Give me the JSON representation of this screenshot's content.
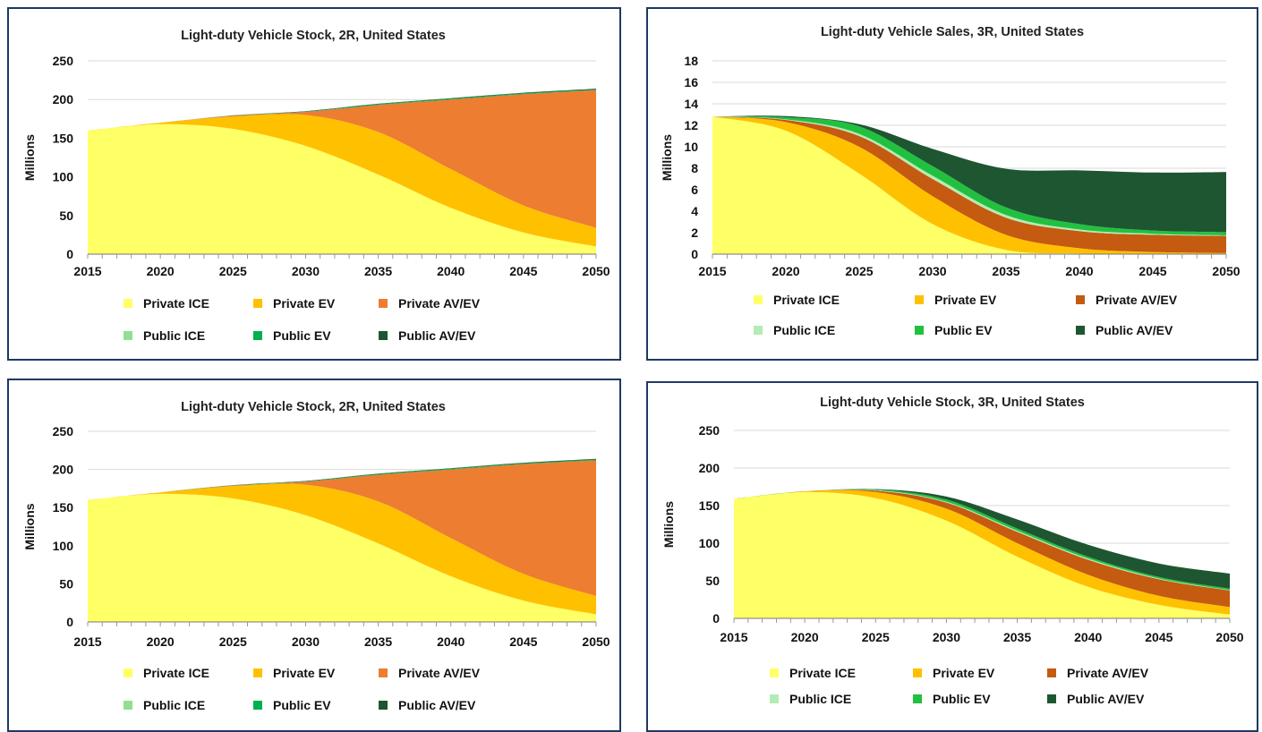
{
  "chart_data": [
    {
      "type": "area",
      "stacked": true,
      "title": "Light-duty Vehicle Stock, 2R, United States",
      "ylabel": "Millions",
      "xlabel": "",
      "x": [
        2015,
        2020,
        2025,
        2030,
        2035,
        2040,
        2045,
        2050
      ],
      "ylim": [
        0,
        250
      ],
      "yticks": [
        0,
        50,
        100,
        150,
        200,
        250
      ],
      "xticks": [
        2015,
        2020,
        2025,
        2030,
        2035,
        2040,
        2045,
        2050
      ],
      "grid": true,
      "legend_position": "bottom",
      "series": [
        {
          "name": "Private ICE",
          "color": "#ffff66",
          "values": [
            160,
            168,
            162,
            140,
            103,
            60,
            28,
            10
          ]
        },
        {
          "name": "Private EV",
          "color": "#ffc000",
          "values": [
            0,
            2,
            16,
            40,
            55,
            50,
            35,
            24
          ]
        },
        {
          "name": "Private AV/EV",
          "color": "#ed7d31",
          "values": [
            0,
            0,
            1,
            4,
            35,
            90,
            144,
            178
          ]
        },
        {
          "name": "Public ICE",
          "color": "#90e090",
          "values": [
            0,
            0,
            0,
            0,
            0,
            0,
            0,
            0
          ]
        },
        {
          "name": "Public EV",
          "color": "#00b050",
          "values": [
            0,
            0,
            0.3,
            0.5,
            1,
            1,
            1,
            1
          ]
        },
        {
          "name": "Public AV/EV",
          "color": "#1e5631",
          "values": [
            0,
            0,
            0.2,
            0.5,
            0.6,
            0.7,
            0.8,
            1
          ]
        }
      ]
    },
    {
      "type": "area",
      "stacked": true,
      "title": "Light-duty Vehicle Sales, 3R, United States",
      "ylabel": "Millions",
      "xlabel": "",
      "x": [
        2015,
        2020,
        2025,
        2030,
        2035,
        2040,
        2045,
        2050
      ],
      "ylim": [
        0,
        18
      ],
      "yticks": [
        0,
        2,
        4,
        6,
        8,
        10,
        12,
        14,
        16,
        18
      ],
      "xticks": [
        2015,
        2020,
        2025,
        2030,
        2035,
        2040,
        2045,
        2050
      ],
      "grid": true,
      "legend_position": "bottom",
      "series": [
        {
          "name": "Private ICE",
          "color": "#ffff66",
          "values": [
            12.8,
            11.5,
            7.5,
            2.8,
            0.4,
            0.05,
            0,
            0
          ]
        },
        {
          "name": "Private EV",
          "color": "#ffc000",
          "values": [
            0,
            0.8,
            2.5,
            2.6,
            1.4,
            0.5,
            0.2,
            0.1
          ]
        },
        {
          "name": "Private AV/EV",
          "color": "#c55a11",
          "values": [
            0,
            0.2,
            1.0,
            1.6,
            1.6,
            1.6,
            1.6,
            1.6
          ]
        },
        {
          "name": "Public ICE",
          "color": "#b4ecb4",
          "values": [
            0,
            0.05,
            0.2,
            0.3,
            0.25,
            0.15,
            0.1,
            0.05
          ]
        },
        {
          "name": "Public EV",
          "color": "#22c040",
          "values": [
            0,
            0.2,
            0.7,
            0.9,
            0.7,
            0.5,
            0.3,
            0.3
          ]
        },
        {
          "name": "Public AV/EV",
          "color": "#1e5631",
          "values": [
            0,
            0.1,
            0.2,
            1.6,
            3.6,
            5.0,
            5.4,
            5.6
          ]
        }
      ]
    },
    {
      "type": "area",
      "stacked": true,
      "title": "Light-duty Vehicle Stock, 2R, United States",
      "ylabel": "Millions",
      "xlabel": "",
      "x": [
        2015,
        2020,
        2025,
        2030,
        2035,
        2040,
        2045,
        2050
      ],
      "ylim": [
        0,
        250
      ],
      "yticks": [
        0,
        50,
        100,
        150,
        200,
        250
      ],
      "xticks": [
        2015,
        2020,
        2025,
        2030,
        2035,
        2040,
        2045,
        2050
      ],
      "grid": true,
      "legend_position": "bottom",
      "series": [
        {
          "name": "Private ICE",
          "color": "#ffff66",
          "values": [
            160,
            168,
            162,
            140,
            103,
            60,
            28,
            10
          ]
        },
        {
          "name": "Private EV",
          "color": "#ffc000",
          "values": [
            0,
            2,
            16,
            40,
            55,
            50,
            35,
            24
          ]
        },
        {
          "name": "Private AV/EV",
          "color": "#ed7d31",
          "values": [
            0,
            0,
            1,
            4,
            35,
            90,
            144,
            178
          ]
        },
        {
          "name": "Public ICE",
          "color": "#90e090",
          "values": [
            0,
            0,
            0,
            0,
            0,
            0,
            0,
            0
          ]
        },
        {
          "name": "Public EV",
          "color": "#00b050",
          "values": [
            0,
            0,
            0.3,
            0.5,
            1,
            1,
            1,
            1
          ]
        },
        {
          "name": "Public AV/EV",
          "color": "#1e5631",
          "values": [
            0,
            0,
            0.2,
            0.5,
            0.6,
            0.7,
            0.8,
            1
          ]
        }
      ]
    },
    {
      "type": "area",
      "stacked": true,
      "title": "Light-duty Vehicle Stock, 3R, United States",
      "ylabel": "Millions",
      "xlabel": "",
      "x": [
        2015,
        2020,
        2025,
        2030,
        2035,
        2040,
        2045,
        2050
      ],
      "ylim": [
        0,
        250
      ],
      "yticks": [
        0,
        50,
        100,
        150,
        200,
        250
      ],
      "xticks": [
        2015,
        2020,
        2025,
        2030,
        2035,
        2040,
        2045,
        2050
      ],
      "grid": true,
      "legend_position": "bottom",
      "series": [
        {
          "name": "Private ICE",
          "color": "#ffff66",
          "values": [
            159,
            168,
            160,
            130,
            82,
            42,
            18,
            5
          ]
        },
        {
          "name": "Private EV",
          "color": "#ffc000",
          "values": [
            0,
            1,
            8,
            16,
            18,
            16,
            12,
            10
          ]
        },
        {
          "name": "Private AV/EV",
          "color": "#c55a11",
          "values": [
            0,
            0,
            2,
            8,
            15,
            20,
            22,
            22
          ]
        },
        {
          "name": "Public ICE",
          "color": "#b4ecb4",
          "values": [
            0,
            0,
            0.5,
            1,
            1.5,
            1.5,
            1,
            0.5
          ]
        },
        {
          "name": "Public EV",
          "color": "#22c040",
          "values": [
            0,
            0,
            1,
            3,
            3,
            2.5,
            2,
            2
          ]
        },
        {
          "name": "Public AV/EV",
          "color": "#1e5631",
          "values": [
            0,
            0,
            0.5,
            4,
            12,
            16,
            18,
            20
          ]
        }
      ]
    }
  ]
}
